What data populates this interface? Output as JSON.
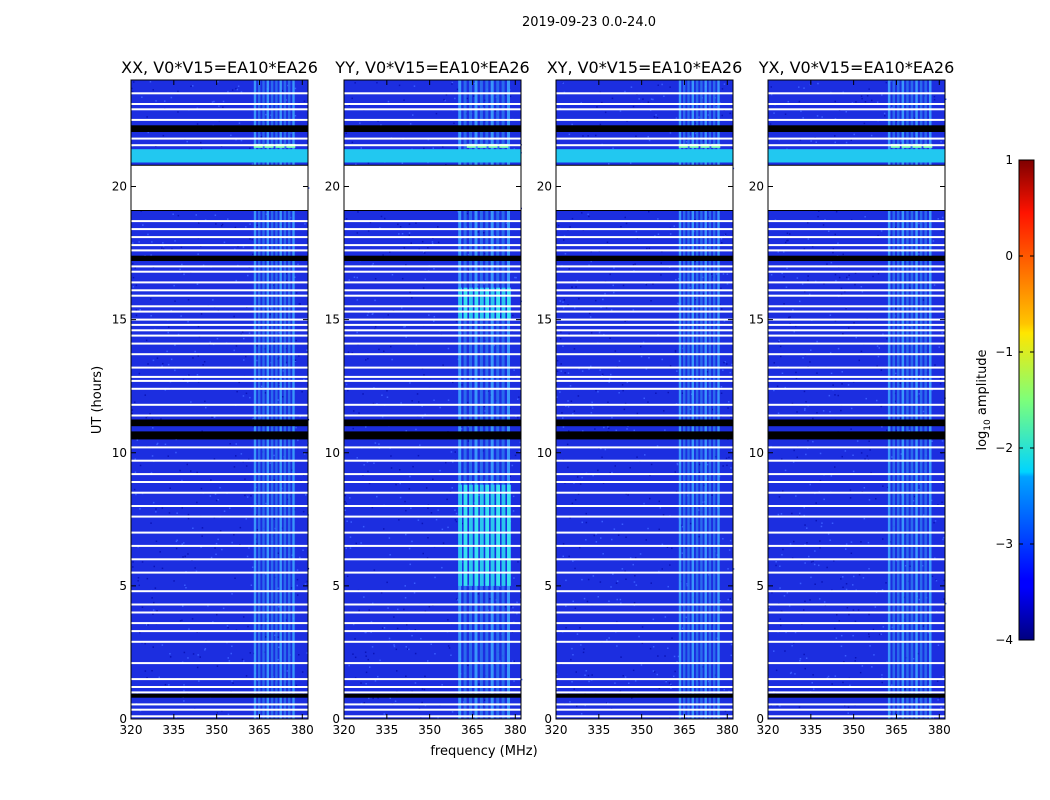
{
  "figure": {
    "suptitle": "2019-09-23 0.0-24.0",
    "xlabel": "frequency (MHz)",
    "ylabel": "UT (hours)",
    "colorbar_label_prefix": "log",
    "colorbar_label_sub": "10",
    "colorbar_label_suffix": " amplitude"
  },
  "chart_data": {
    "type": "heatmap",
    "title": "2019-09-23 0.0-24.0",
    "xlabel": "frequency (MHz)",
    "ylabel": "UT (hours)",
    "xlim": [
      320,
      382
    ],
    "ylim": [
      0,
      24
    ],
    "xticks": [
      320,
      335,
      350,
      365,
      380
    ],
    "yticks": [
      0,
      5,
      10,
      15,
      20
    ],
    "panels": [
      {
        "title": "XX, V0*V15=EA10*EA26",
        "strong_band": [
          363,
          378
        ],
        "strong_time": []
      },
      {
        "title": "YY, V0*V15=EA10*EA26",
        "strong_band": [
          360,
          379
        ],
        "strong_time": [
          [
            5,
            8.8
          ],
          [
            15,
            16.2
          ]
        ]
      },
      {
        "title": "XY, V0*V15=EA10*EA26",
        "strong_band": [
          363,
          378
        ],
        "strong_time": []
      },
      {
        "title": "YX, V0*V15=EA10*EA26",
        "strong_band": [
          362,
          378
        ],
        "strong_time": []
      }
    ],
    "flagged_gap": [
      19.1,
      20.8
    ],
    "bright_time_band": [
      20.9,
      21.4
    ],
    "dark_rows": [
      [
        17.2,
        17.4
      ],
      [
        10.5,
        10.8
      ],
      [
        11.0,
        11.25
      ],
      [
        22.05,
        22.3
      ],
      [
        0.8,
        0.95
      ]
    ],
    "white_rows": [
      0.1,
      0.35,
      0.55,
      1.0,
      1.2,
      1.5,
      2.1,
      2.9,
      3.3,
      3.6,
      4.0,
      4.3,
      4.8,
      5.5,
      6.0,
      6.5,
      7.0,
      7.6,
      8.0,
      8.5,
      8.9,
      9.2,
      9.7,
      10.2,
      11.4,
      11.8,
      12.4,
      12.7,
      12.85,
      13.2,
      13.7,
      14.1,
      14.4,
      14.6,
      14.8,
      15.0,
      15.3,
      15.5,
      15.9,
      16.1,
      16.4,
      16.8,
      17.0,
      17.6,
      17.8,
      18.1,
      18.4,
      18.7,
      21.55,
      21.8,
      22.5,
      22.9,
      23.1,
      23.5
    ],
    "colorbar": {
      "label": "log10 amplitude",
      "range": [
        -4,
        1
      ],
      "ticks": [
        -4,
        -3,
        -2,
        -1,
        0,
        1
      ],
      "colormap": "jet"
    }
  }
}
